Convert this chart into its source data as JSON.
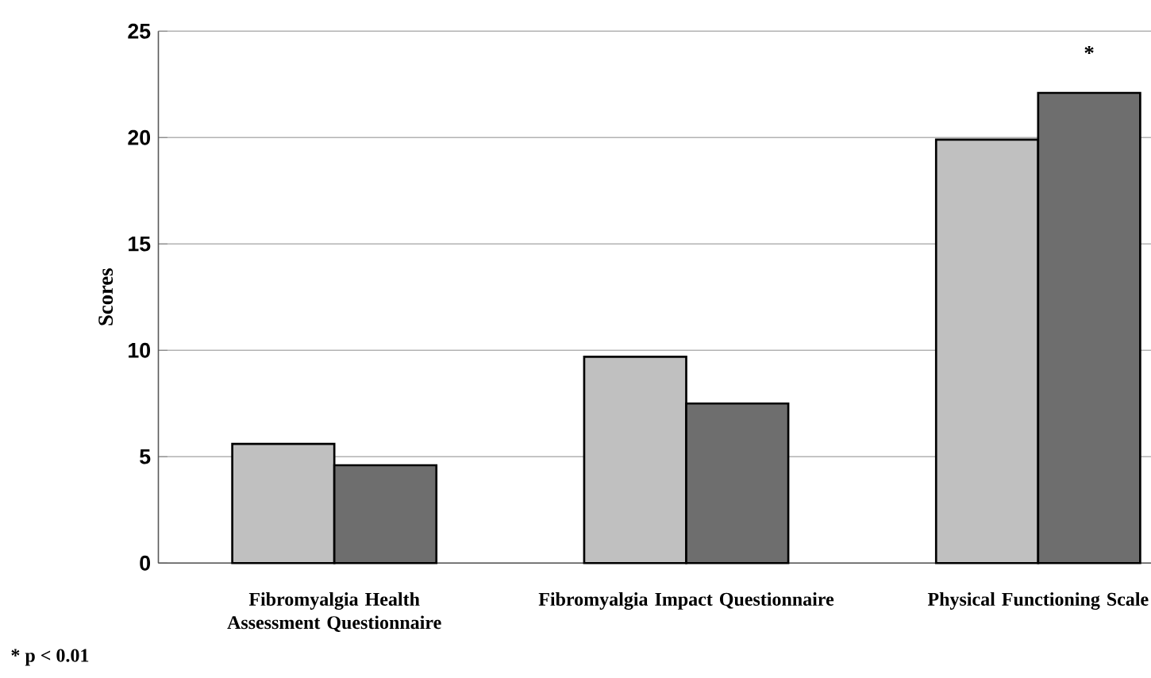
{
  "chart_data": {
    "type": "bar",
    "ylabel": "Scores",
    "categories": [
      "Fibromyalgia Health Assessment Questionnaire",
      "Fibromyalgia Impact Questionnaire",
      "Physical Functioning Scale"
    ],
    "series": [
      {
        "color": "#c0c0c0",
        "values": [
          5.6,
          9.7,
          19.9
        ]
      },
      {
        "color": "#6e6e6e",
        "values": [
          4.6,
          7.5,
          22.1
        ]
      }
    ],
    "ylim": [
      0,
      25
    ],
    "yticks": [
      0,
      5,
      10,
      15,
      20,
      25
    ],
    "grid": "y",
    "annotations": [
      "*",
      "* p < 0.01"
    ]
  }
}
